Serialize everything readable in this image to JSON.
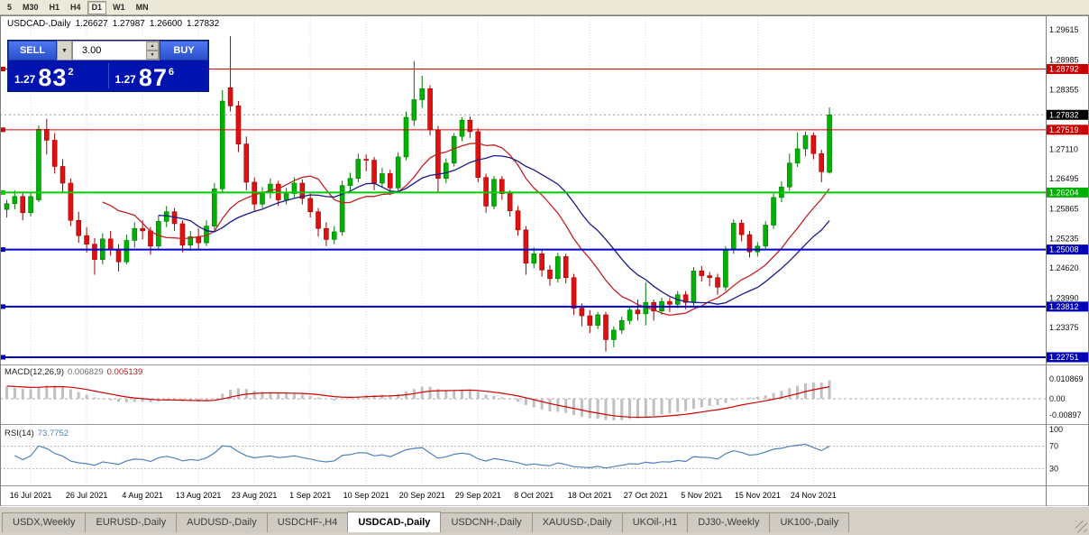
{
  "toolbar": {
    "timeframes": [
      "5",
      "M30",
      "H1",
      "H4",
      "D1",
      "W1",
      "MN"
    ],
    "active": "D1"
  },
  "title": {
    "symbol": "USDCAD-,Daily",
    "open": "1.26627",
    "high": "1.27987",
    "low": "1.26600",
    "close": "1.27832"
  },
  "trade_panel": {
    "sell_label": "SELL",
    "buy_label": "BUY",
    "volume": "3.00",
    "sell_price": {
      "prefix": "1.27",
      "big": "83",
      "sup": "2"
    },
    "buy_price": {
      "prefix": "1.27",
      "big": "87",
      "sup": "6"
    },
    "colors": {
      "button": "#2e55d4",
      "panel": "#0013ae"
    }
  },
  "chart_data": {
    "type": "candlestick",
    "symbol": "USDCAD",
    "timeframe": "Daily",
    "current_price": {
      "value": "1.27832",
      "bg": "#000000"
    },
    "y_axis_ticks": [
      "1.29615",
      "1.28985",
      "1.28355",
      "1.27110",
      "1.26495",
      "1.25865",
      "1.25235",
      "1.24620",
      "1.23990",
      "1.23375"
    ],
    "date_labels": [
      "16 Jul 2021",
      "26 Jul 2021",
      "4 Aug 2021",
      "13 Aug 2021",
      "23 Aug 2021",
      "1 Sep 2021",
      "10 Sep 2021",
      "20 Sep 2021",
      "29 Sep 2021",
      "8 Oct 2021",
      "18 Oct 2021",
      "27 Oct 2021",
      "5 Nov 2021",
      "15 Nov 2021",
      "24 Nov 2021"
    ],
    "levels": [
      {
        "price": 1.28792,
        "label": "1.28792",
        "color": "#d40000",
        "bg": "#c80000",
        "width": 1
      },
      {
        "price": 1.27519,
        "label": "1.27519",
        "color": "#d40000",
        "bg": "#c80000",
        "width": 1
      },
      {
        "price": 1.26204,
        "label": "1.26204",
        "color": "#00cc00",
        "bg": "#00b000",
        "width": 2
      },
      {
        "price": 1.25008,
        "label": "1.25008",
        "color": "#0000c8",
        "bg": "#0000b4",
        "width": 2
      },
      {
        "price": 1.23812,
        "label": "1.23812",
        "color": "#0000c8",
        "bg": "#0000b4",
        "width": 2
      },
      {
        "price": 1.22751,
        "label": "1.22751",
        "color": "#0000c8",
        "bg": "#0000b4",
        "width": 2
      }
    ],
    "colors": {
      "up": "#00b200",
      "up_border": "#007800",
      "down": "#e01010",
      "down_border": "#9c0000",
      "ma_fast": "#c22222",
      "ma_slow": "#1a1a8c",
      "macd_hist": "#c0c0c0",
      "macd_signal": "#cc0000",
      "rsi": "#4f81bd"
    },
    "indicators": {
      "macd": {
        "label": "MACD(12,26,9)",
        "value_main": "0.006829",
        "value_signal": "0.005139",
        "axis_labels": [
          "0.010869",
          "0.00",
          "-0.00897"
        ]
      },
      "rsi": {
        "label": "RSI(14)",
        "value": "73.7752",
        "axis_labels": [
          "100",
          "70",
          "30"
        ],
        "levels": [
          70,
          30
        ]
      }
    },
    "candles": [
      [
        1.2585,
        1.2605,
        1.2568,
        1.2597
      ],
      [
        1.2597,
        1.2625,
        1.2585,
        1.2612
      ],
      [
        1.2612,
        1.262,
        1.2562,
        1.2578
      ],
      [
        1.2578,
        1.2622,
        1.257,
        1.2612
      ],
      [
        1.2605,
        1.2761,
        1.26,
        1.2753
      ],
      [
        1.2753,
        1.2775,
        1.27,
        1.273
      ],
      [
        1.273,
        1.2745,
        1.266,
        1.2675
      ],
      [
        1.2675,
        1.269,
        1.2622,
        1.264
      ],
      [
        1.264,
        1.265,
        1.255,
        1.2562
      ],
      [
        1.2562,
        1.258,
        1.2515,
        1.253
      ],
      [
        1.253,
        1.2548,
        1.2495,
        1.2512
      ],
      [
        1.2512,
        1.2525,
        1.2448,
        1.248
      ],
      [
        1.248,
        1.2535,
        1.247,
        1.2523
      ],
      [
        1.2523,
        1.254,
        1.2488,
        1.25
      ],
      [
        1.25,
        1.2512,
        1.2455,
        1.2475
      ],
      [
        1.2475,
        1.2532,
        1.247,
        1.252
      ],
      [
        1.252,
        1.2558,
        1.2505,
        1.2545
      ],
      [
        1.2545,
        1.2562,
        1.2522,
        1.254
      ],
      [
        1.254,
        1.2548,
        1.249,
        1.2508
      ],
      [
        1.2508,
        1.2572,
        1.25,
        1.256
      ],
      [
        1.256,
        1.2592,
        1.2548,
        1.258
      ],
      [
        1.258,
        1.2588,
        1.254,
        1.2555
      ],
      [
        1.2555,
        1.2562,
        1.2495,
        1.251
      ],
      [
        1.251,
        1.254,
        1.2498,
        1.2528
      ],
      [
        1.2528,
        1.2545,
        1.2502,
        1.2515
      ],
      [
        1.2515,
        1.2562,
        1.2508,
        1.255
      ],
      [
        1.255,
        1.264,
        1.2542,
        1.2628
      ],
      [
        1.2628,
        1.2835,
        1.262,
        1.2812
      ],
      [
        1.284,
        1.2948,
        1.279,
        1.2802
      ],
      [
        1.2802,
        1.2812,
        1.2705,
        1.2722
      ],
      [
        1.2722,
        1.2738,
        1.2625,
        1.2642
      ],
      [
        1.2642,
        1.2652,
        1.258,
        1.2596
      ],
      [
        1.2596,
        1.2632,
        1.2588,
        1.262
      ],
      [
        1.262,
        1.265,
        1.2608,
        1.2638
      ],
      [
        1.2638,
        1.2645,
        1.2592,
        1.2605
      ],
      [
        1.2605,
        1.263,
        1.2595,
        1.2618
      ],
      [
        1.2618,
        1.2652,
        1.261,
        1.264
      ],
      [
        1.264,
        1.2648,
        1.2595,
        1.2608
      ],
      [
        1.2608,
        1.2618,
        1.2568,
        1.258
      ],
      [
        1.258,
        1.2588,
        1.2528,
        1.2545
      ],
      [
        1.2545,
        1.2558,
        1.2508,
        1.2522
      ],
      [
        1.2522,
        1.255,
        1.2512,
        1.2538
      ],
      [
        1.2538,
        1.2645,
        1.253,
        1.2635
      ],
      [
        1.2635,
        1.2662,
        1.262,
        1.265
      ],
      [
        1.265,
        1.2702,
        1.2642,
        1.269
      ],
      [
        1.269,
        1.27,
        1.2665,
        1.2688
      ],
      [
        1.2688,
        1.2695,
        1.2625,
        1.264
      ],
      [
        1.264,
        1.2672,
        1.263,
        1.266
      ],
      [
        1.266,
        1.2668,
        1.2615,
        1.263
      ],
      [
        1.263,
        1.2705,
        1.2622,
        1.2695
      ],
      [
        1.2695,
        1.279,
        1.2688,
        1.2778
      ],
      [
        1.2772,
        1.2896,
        1.276,
        1.2815
      ],
      [
        1.2815,
        1.2865,
        1.2798,
        1.2838
      ],
      [
        1.2838,
        1.2845,
        1.274,
        1.2752
      ],
      [
        1.2752,
        1.276,
        1.2622,
        1.265
      ],
      [
        1.265,
        1.2692,
        1.264,
        1.2682
      ],
      [
        1.2682,
        1.2745,
        1.2675,
        1.2738
      ],
      [
        1.2738,
        1.2778,
        1.2728,
        1.2772
      ],
      [
        1.2772,
        1.278,
        1.2735,
        1.2748
      ],
      [
        1.2748,
        1.2755,
        1.2642,
        1.2652
      ],
      [
        1.2652,
        1.266,
        1.2578,
        1.2592
      ],
      [
        1.2592,
        1.2655,
        1.2585,
        1.2648
      ],
      [
        1.2648,
        1.2655,
        1.2605,
        1.2618
      ],
      [
        1.2618,
        1.2625,
        1.257,
        1.2582
      ],
      [
        1.2582,
        1.2592,
        1.253,
        1.2542
      ],
      [
        1.2542,
        1.255,
        1.2448,
        1.2472
      ],
      [
        1.2472,
        1.2505,
        1.2462,
        1.2492
      ],
      [
        1.2492,
        1.25,
        1.2444,
        1.2458
      ],
      [
        1.2458,
        1.2468,
        1.2425,
        1.244
      ],
      [
        1.244,
        1.2494,
        1.2432,
        1.2486
      ],
      [
        1.2486,
        1.2492,
        1.243,
        1.2442
      ],
      [
        1.2442,
        1.245,
        1.2364,
        1.2378
      ],
      [
        1.2378,
        1.2388,
        1.234,
        1.2362
      ],
      [
        1.2362,
        1.2374,
        1.2326,
        1.2342
      ],
      [
        1.2342,
        1.237,
        1.2334,
        1.2364
      ],
      [
        1.2364,
        1.237,
        1.2287,
        1.2312
      ],
      [
        1.2312,
        1.234,
        1.2296,
        1.2332
      ],
      [
        1.2332,
        1.236,
        1.2324,
        1.2352
      ],
      [
        1.2352,
        1.2382,
        1.2344,
        1.2374
      ],
      [
        1.2374,
        1.2396,
        1.2352,
        1.2366
      ],
      [
        1.2366,
        1.2432,
        1.2342,
        1.239
      ],
      [
        1.239,
        1.2396,
        1.2352,
        1.2372
      ],
      [
        1.2372,
        1.24,
        1.2364,
        1.2392
      ],
      [
        1.2392,
        1.24,
        1.237,
        1.2386
      ],
      [
        1.2386,
        1.2414,
        1.2378,
        1.2406
      ],
      [
        1.2406,
        1.2414,
        1.2376,
        1.239
      ],
      [
        1.239,
        1.2464,
        1.2382,
        1.2456
      ],
      [
        1.2456,
        1.2466,
        1.2434,
        1.2446
      ],
      [
        1.2446,
        1.2454,
        1.2424,
        1.2442
      ],
      [
        1.2442,
        1.245,
        1.2406,
        1.2422
      ],
      [
        1.2422,
        1.2508,
        1.2414,
        1.25
      ],
      [
        1.25,
        1.2564,
        1.2492,
        1.2556
      ],
      [
        1.2556,
        1.2564,
        1.2518,
        1.2532
      ],
      [
        1.2532,
        1.254,
        1.2484,
        1.2496
      ],
      [
        1.2496,
        1.2516,
        1.2486,
        1.2508
      ],
      [
        1.2508,
        1.256,
        1.25,
        1.2552
      ],
      [
        1.2552,
        1.2618,
        1.2544,
        1.261
      ],
      [
        1.261,
        1.2644,
        1.26,
        1.2632
      ],
      [
        1.2632,
        1.2702,
        1.2624,
        1.2682
      ],
      [
        1.2682,
        1.2746,
        1.2674,
        1.2712
      ],
      [
        1.2712,
        1.2748,
        1.2696,
        1.274
      ],
      [
        1.274,
        1.2746,
        1.269,
        1.2702
      ],
      [
        1.2702,
        1.271,
        1.2642,
        1.2664
      ],
      [
        1.26627,
        1.27987,
        1.266,
        1.27832
      ]
    ]
  },
  "tabs": {
    "active": "USDCAD-,Daily",
    "items": [
      {
        "label": "USDX,Weekly"
      },
      {
        "label": "EURUSD-,Daily"
      },
      {
        "label": "AUDUSD-,Daily"
      },
      {
        "label": "USDCHF-,H4"
      },
      {
        "label": "USDCAD-,Daily"
      },
      {
        "label": "USDCNH-,Daily"
      },
      {
        "label": "XAUUSD-,Daily"
      },
      {
        "label": "UKOil-,H1"
      },
      {
        "label": "DJ30-,Weekly"
      },
      {
        "label": "UK100-,Daily"
      }
    ]
  }
}
